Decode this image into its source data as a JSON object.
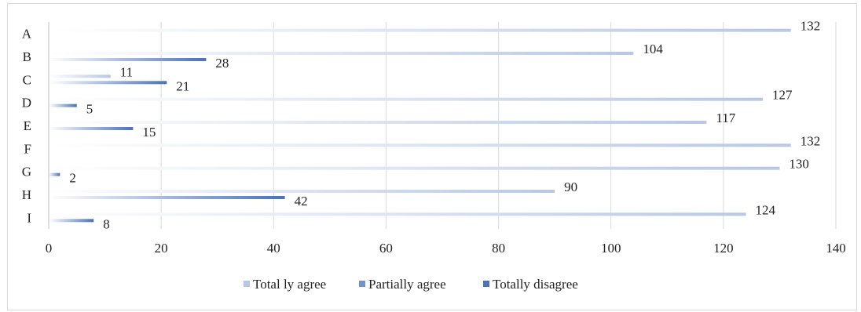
{
  "chart_data": {
    "type": "bar",
    "orientation": "horizontal",
    "categories": [
      "A",
      "B",
      "C",
      "D",
      "E",
      "F",
      "G",
      "H",
      "I"
    ],
    "series": [
      {
        "name": "Total ly agree",
        "values": [
          132,
          104,
          11,
          127,
          117,
          132,
          130,
          90,
          124
        ],
        "color": "#b8c7e3"
      },
      {
        "name": "Partially agree",
        "values": [
          0,
          0,
          0,
          0,
          0,
          0,
          0,
          0,
          0
        ],
        "color": "#7393cc"
      },
      {
        "name": "Totally disagree",
        "values": [
          0,
          28,
          21,
          5,
          15,
          0,
          2,
          42,
          8
        ],
        "color": "#4a72b8"
      }
    ],
    "data_labels": [
      [
        "132",
        null,
        null
      ],
      [
        "104",
        null,
        "28"
      ],
      [
        "11",
        null,
        "21"
      ],
      [
        "127",
        null,
        "5"
      ],
      [
        "117",
        null,
        "15"
      ],
      [
        "132",
        null,
        null
      ],
      [
        "130",
        null,
        "2"
      ],
      [
        "90",
        null,
        "42"
      ],
      [
        "124",
        null,
        "8"
      ]
    ],
    "xlim": [
      0,
      140
    ],
    "xticks": [
      0,
      20,
      40,
      60,
      80,
      100,
      120,
      140
    ],
    "grid": true,
    "legend": "bottom"
  }
}
